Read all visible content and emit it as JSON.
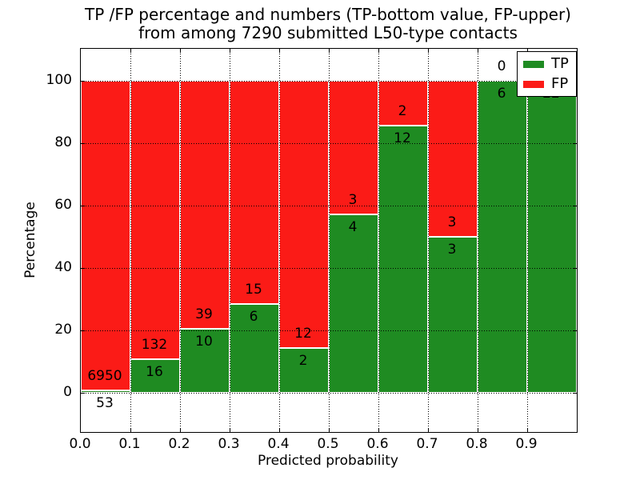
{
  "title": {
    "line1": "TP /FP percentage and numbers (TP-bottom value, FP-upper)",
    "line2": "from among 7290 submitted L50-type contacts"
  },
  "axes": {
    "xlabel": "Predicted probability",
    "ylabel": "Percentage"
  },
  "legend": {
    "items": [
      {
        "label": "TP",
        "color": "#1f8b22"
      },
      {
        "label": "FP",
        "color": "#fb1b17"
      }
    ]
  },
  "chart_data": {
    "type": "bar",
    "subtype": "stacked-percentage",
    "title": "TP /FP percentage and numbers (TP-bottom value, FP-upper) from among 7290 submitted L50-type contacts",
    "xlabel": "Predicted probability",
    "ylabel": "Percentage",
    "total_contacts": 7290,
    "bins": [
      "0.0-0.1",
      "0.1-0.2",
      "0.2-0.3",
      "0.3-0.4",
      "0.4-0.5",
      "0.5-0.6",
      "0.6-0.7",
      "0.7-0.8",
      "0.8-0.9",
      "0.9-1.0"
    ],
    "series": [
      {
        "name": "TP",
        "color": "#1f8b22",
        "counts": [
          53,
          16,
          10,
          6,
          2,
          4,
          12,
          3,
          6,
          22
        ]
      },
      {
        "name": "FP",
        "color": "#fb1b17",
        "counts": [
          6950,
          132,
          39,
          15,
          12,
          3,
          2,
          3,
          0,
          0
        ]
      }
    ],
    "tp_percentages": [
      0.76,
      10.81,
      20.41,
      28.57,
      14.29,
      57.14,
      85.71,
      50.0,
      100.0,
      100.0
    ],
    "x_ticks": [
      "0.0",
      "0.1",
      "0.2",
      "0.3",
      "0.4",
      "0.5",
      "0.6",
      "0.7",
      "0.8",
      "0.9"
    ],
    "y_ticks": [
      0,
      20,
      40,
      60,
      80,
      100
    ],
    "xlim": [
      0.0,
      1.0
    ],
    "ylim": [
      -12.5,
      110.5
    ],
    "grid": true,
    "legend_position": "upper-right",
    "annotation_rule": "FP count above green/red boundary, TP count below boundary"
  }
}
